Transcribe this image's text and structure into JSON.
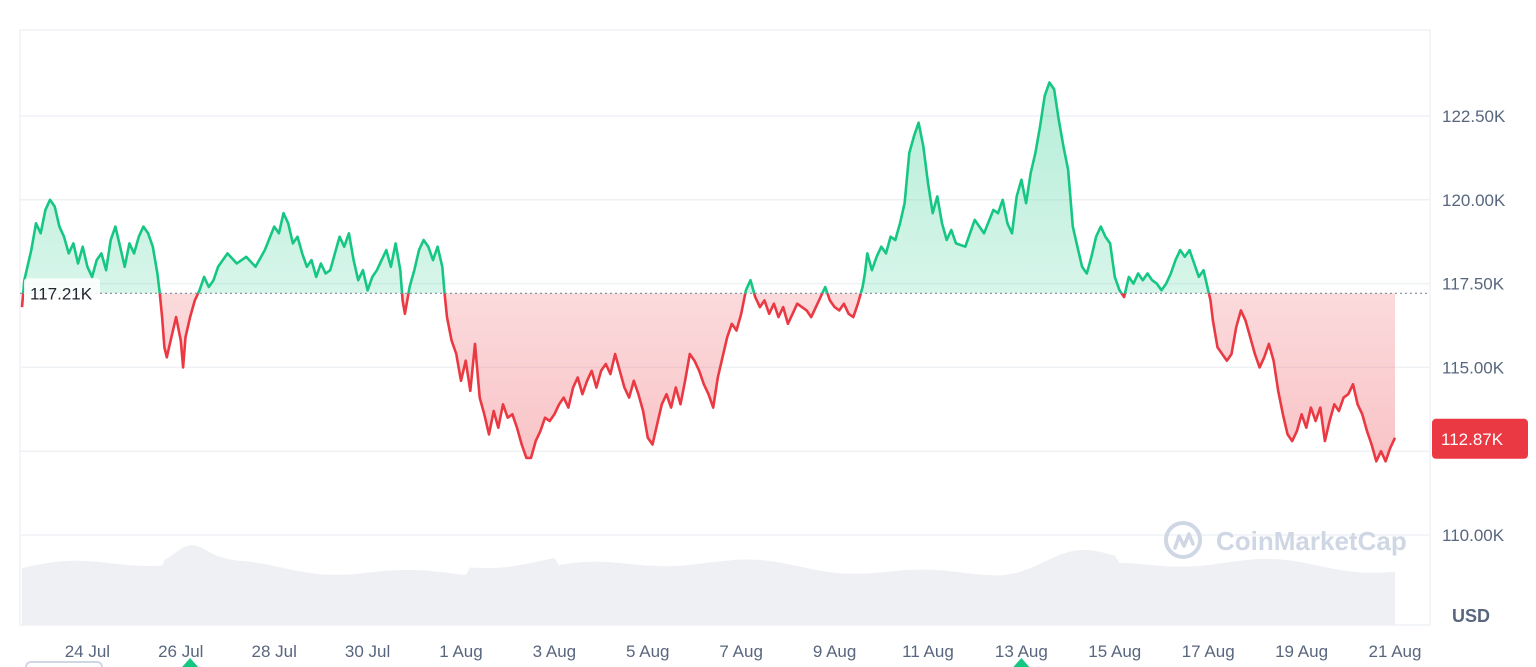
{
  "chart_data": {
    "type": "area",
    "currency_label": "USD",
    "watermark": "CoinMarketCap",
    "ylim": [
      108000,
      124300
    ],
    "y_ticks": [
      {
        "value": 110000,
        "label": "110.00K"
      },
      {
        "value": 115000,
        "label": "115.00K"
      },
      {
        "value": 117500,
        "label": "117.50K"
      },
      {
        "value": 120000,
        "label": "120.00K"
      },
      {
        "value": 122500,
        "label": "122.50K"
      }
    ],
    "x_ticks": [
      {
        "t": 1.4,
        "label": "24 Jul"
      },
      {
        "t": 3.4,
        "label": "26 Jul"
      },
      {
        "t": 5.4,
        "label": "28 Jul"
      },
      {
        "t": 7.4,
        "label": "30 Jul"
      },
      {
        "t": 9.4,
        "label": "1 Aug"
      },
      {
        "t": 11.4,
        "label": "3 Aug"
      },
      {
        "t": 13.4,
        "label": "5 Aug"
      },
      {
        "t": 15.4,
        "label": "7 Aug"
      },
      {
        "t": 17.4,
        "label": "9 Aug"
      },
      {
        "t": 19.4,
        "label": "11 Aug"
      },
      {
        "t": 21.4,
        "label": "13 Aug"
      },
      {
        "t": 23.4,
        "label": "15 Aug"
      },
      {
        "t": 25.4,
        "label": "17 Aug"
      },
      {
        "t": 27.4,
        "label": "19 Aug"
      },
      {
        "t": 29.4,
        "label": "21 Aug"
      }
    ],
    "reference_price": {
      "value": 117210,
      "label": "117.21K"
    },
    "current_price": {
      "value": 112870,
      "label": "112.87K"
    },
    "colors": {
      "up": "#16c784",
      "down": "#ea3943",
      "grid": "#eff2f5",
      "volume": "#eef0f3"
    },
    "series": [
      {
        "values": [
          [
            0.0,
            116800
          ],
          [
            0.05,
            117600
          ],
          [
            0.2,
            118500
          ],
          [
            0.3,
            119300
          ],
          [
            0.4,
            119000
          ],
          [
            0.5,
            119700
          ],
          [
            0.6,
            120000
          ],
          [
            0.7,
            119800
          ],
          [
            0.8,
            119200
          ],
          [
            0.9,
            118900
          ],
          [
            1.0,
            118400
          ],
          [
            1.1,
            118700
          ],
          [
            1.2,
            118100
          ],
          [
            1.3,
            118600
          ],
          [
            1.4,
            118000
          ],
          [
            1.5,
            117700
          ],
          [
            1.6,
            118200
          ],
          [
            1.7,
            118400
          ],
          [
            1.8,
            117900
          ],
          [
            1.9,
            118800
          ],
          [
            2.0,
            119200
          ],
          [
            2.1,
            118600
          ],
          [
            2.2,
            118000
          ],
          [
            2.3,
            118700
          ],
          [
            2.4,
            118400
          ],
          [
            2.5,
            118900
          ],
          [
            2.6,
            119200
          ],
          [
            2.7,
            119000
          ],
          [
            2.8,
            118600
          ],
          [
            2.9,
            117800
          ],
          [
            2.95,
            117200
          ],
          [
            3.0,
            116500
          ],
          [
            3.05,
            115600
          ],
          [
            3.1,
            115300
          ],
          [
            3.2,
            115900
          ],
          [
            3.3,
            116500
          ],
          [
            3.4,
            115800
          ],
          [
            3.45,
            115000
          ],
          [
            3.5,
            115900
          ],
          [
            3.6,
            116500
          ],
          [
            3.7,
            117000
          ],
          [
            3.8,
            117300
          ],
          [
            3.9,
            117700
          ],
          [
            4.0,
            117400
          ],
          [
            4.1,
            117600
          ],
          [
            4.2,
            118000
          ],
          [
            4.4,
            118400
          ],
          [
            4.6,
            118100
          ],
          [
            4.8,
            118300
          ],
          [
            5.0,
            118000
          ],
          [
            5.2,
            118500
          ],
          [
            5.4,
            119200
          ],
          [
            5.5,
            119000
          ],
          [
            5.6,
            119600
          ],
          [
            5.7,
            119300
          ],
          [
            5.8,
            118700
          ],
          [
            5.9,
            118900
          ],
          [
            6.0,
            118400
          ],
          [
            6.1,
            118000
          ],
          [
            6.2,
            118200
          ],
          [
            6.3,
            117700
          ],
          [
            6.4,
            118100
          ],
          [
            6.5,
            117800
          ],
          [
            6.6,
            117900
          ],
          [
            6.7,
            118400
          ],
          [
            6.8,
            118900
          ],
          [
            6.9,
            118600
          ],
          [
            7.0,
            119000
          ],
          [
            7.1,
            118200
          ],
          [
            7.2,
            117600
          ],
          [
            7.3,
            117900
          ],
          [
            7.4,
            117300
          ],
          [
            7.5,
            117700
          ],
          [
            7.6,
            117900
          ],
          [
            7.7,
            118200
          ],
          [
            7.8,
            118500
          ],
          [
            7.9,
            118000
          ],
          [
            8.0,
            118700
          ],
          [
            8.1,
            117900
          ],
          [
            8.15,
            117000
          ],
          [
            8.2,
            116600
          ],
          [
            8.3,
            117400
          ],
          [
            8.4,
            117900
          ],
          [
            8.5,
            118500
          ],
          [
            8.6,
            118800
          ],
          [
            8.7,
            118600
          ],
          [
            8.8,
            118200
          ],
          [
            8.9,
            118600
          ],
          [
            9.0,
            118000
          ],
          [
            9.05,
            117200
          ],
          [
            9.1,
            116500
          ],
          [
            9.2,
            115800
          ],
          [
            9.3,
            115400
          ],
          [
            9.35,
            115000
          ],
          [
            9.4,
            114600
          ],
          [
            9.5,
            115200
          ],
          [
            9.6,
            114300
          ],
          [
            9.7,
            115700
          ],
          [
            9.8,
            114100
          ],
          [
            9.9,
            113600
          ],
          [
            10.0,
            113000
          ],
          [
            10.1,
            113700
          ],
          [
            10.2,
            113200
          ],
          [
            10.3,
            113900
          ],
          [
            10.4,
            113500
          ],
          [
            10.5,
            113600
          ],
          [
            10.6,
            113200
          ],
          [
            10.7,
            112700
          ],
          [
            10.8,
            112300
          ],
          [
            10.9,
            112300
          ],
          [
            11.0,
            112800
          ],
          [
            11.1,
            113100
          ],
          [
            11.2,
            113500
          ],
          [
            11.3,
            113400
          ],
          [
            11.4,
            113600
          ],
          [
            11.5,
            113900
          ],
          [
            11.6,
            114100
          ],
          [
            11.7,
            113800
          ],
          [
            11.8,
            114400
          ],
          [
            11.9,
            114700
          ],
          [
            12.0,
            114200
          ],
          [
            12.1,
            114600
          ],
          [
            12.2,
            114900
          ],
          [
            12.3,
            114400
          ],
          [
            12.4,
            114900
          ],
          [
            12.5,
            115100
          ],
          [
            12.6,
            114800
          ],
          [
            12.7,
            115400
          ],
          [
            12.8,
            114900
          ],
          [
            12.9,
            114400
          ],
          [
            13.0,
            114100
          ],
          [
            13.1,
            114600
          ],
          [
            13.2,
            114200
          ],
          [
            13.3,
            113700
          ],
          [
            13.4,
            112900
          ],
          [
            13.5,
            112700
          ],
          [
            13.6,
            113300
          ],
          [
            13.7,
            113900
          ],
          [
            13.8,
            114200
          ],
          [
            13.9,
            113800
          ],
          [
            14.0,
            114400
          ],
          [
            14.1,
            113900
          ],
          [
            14.2,
            114600
          ],
          [
            14.3,
            115400
          ],
          [
            14.4,
            115200
          ],
          [
            14.5,
            114900
          ],
          [
            14.6,
            114500
          ],
          [
            14.7,
            114200
          ],
          [
            14.8,
            113800
          ],
          [
            14.9,
            114700
          ],
          [
            15.0,
            115300
          ],
          [
            15.1,
            115900
          ],
          [
            15.2,
            116300
          ],
          [
            15.3,
            116100
          ],
          [
            15.4,
            116600
          ],
          [
            15.5,
            117300
          ],
          [
            15.6,
            117600
          ],
          [
            15.7,
            117100
          ],
          [
            15.8,
            116800
          ],
          [
            15.9,
            117000
          ],
          [
            16.0,
            116600
          ],
          [
            16.1,
            116900
          ],
          [
            16.2,
            116500
          ],
          [
            16.3,
            116800
          ],
          [
            16.4,
            116300
          ],
          [
            16.5,
            116600
          ],
          [
            16.6,
            116900
          ],
          [
            16.7,
            116800
          ],
          [
            16.8,
            116700
          ],
          [
            16.9,
            116500
          ],
          [
            17.0,
            116800
          ],
          [
            17.1,
            117100
          ],
          [
            17.2,
            117400
          ],
          [
            17.3,
            117000
          ],
          [
            17.4,
            116800
          ],
          [
            17.5,
            116700
          ],
          [
            17.6,
            116900
          ],
          [
            17.7,
            116600
          ],
          [
            17.8,
            116500
          ],
          [
            17.9,
            116900
          ],
          [
            18.0,
            117400
          ],
          [
            18.05,
            117800
          ],
          [
            18.1,
            118400
          ],
          [
            18.2,
            117900
          ],
          [
            18.3,
            118300
          ],
          [
            18.4,
            118600
          ],
          [
            18.5,
            118400
          ],
          [
            18.6,
            118900
          ],
          [
            18.7,
            118800
          ],
          [
            18.8,
            119300
          ],
          [
            18.9,
            119900
          ],
          [
            19.0,
            121400
          ],
          [
            19.1,
            121900
          ],
          [
            19.2,
            122300
          ],
          [
            19.3,
            121600
          ],
          [
            19.4,
            120500
          ],
          [
            19.5,
            119600
          ],
          [
            19.6,
            120100
          ],
          [
            19.7,
            119300
          ],
          [
            19.8,
            118800
          ],
          [
            19.9,
            119100
          ],
          [
            20.0,
            118700
          ],
          [
            20.2,
            118600
          ],
          [
            20.4,
            119400
          ],
          [
            20.6,
            119000
          ],
          [
            20.8,
            119700
          ],
          [
            20.9,
            119600
          ],
          [
            21.0,
            120000
          ],
          [
            21.1,
            119300
          ],
          [
            21.2,
            119000
          ],
          [
            21.3,
            120100
          ],
          [
            21.4,
            120600
          ],
          [
            21.5,
            119900
          ],
          [
            21.6,
            120800
          ],
          [
            21.7,
            121400
          ],
          [
            21.8,
            122200
          ],
          [
            21.9,
            123100
          ],
          [
            22.0,
            123500
          ],
          [
            22.1,
            123300
          ],
          [
            22.2,
            122400
          ],
          [
            22.3,
            121600
          ],
          [
            22.4,
            120900
          ],
          [
            22.5,
            119200
          ],
          [
            22.6,
            118600
          ],
          [
            22.7,
            118000
          ],
          [
            22.8,
            117800
          ],
          [
            22.9,
            118300
          ],
          [
            23.0,
            118900
          ],
          [
            23.1,
            119200
          ],
          [
            23.2,
            118900
          ],
          [
            23.3,
            118700
          ],
          [
            23.4,
            117700
          ],
          [
            23.5,
            117300
          ],
          [
            23.6,
            117100
          ],
          [
            23.7,
            117700
          ],
          [
            23.8,
            117500
          ],
          [
            23.9,
            117800
          ],
          [
            24.0,
            117600
          ],
          [
            24.1,
            117800
          ],
          [
            24.2,
            117600
          ],
          [
            24.3,
            117500
          ],
          [
            24.4,
            117300
          ],
          [
            24.5,
            117500
          ],
          [
            24.6,
            117800
          ],
          [
            24.7,
            118200
          ],
          [
            24.8,
            118500
          ],
          [
            24.9,
            118300
          ],
          [
            25.0,
            118500
          ],
          [
            25.1,
            118100
          ],
          [
            25.2,
            117700
          ],
          [
            25.3,
            117900
          ],
          [
            25.4,
            117300
          ],
          [
            25.45,
            117000
          ],
          [
            25.5,
            116400
          ],
          [
            25.6,
            115600
          ],
          [
            25.7,
            115400
          ],
          [
            25.8,
            115200
          ],
          [
            25.9,
            115400
          ],
          [
            26.0,
            116200
          ],
          [
            26.1,
            116700
          ],
          [
            26.2,
            116400
          ],
          [
            26.3,
            115900
          ],
          [
            26.4,
            115400
          ],
          [
            26.5,
            115000
          ],
          [
            26.6,
            115300
          ],
          [
            26.7,
            115700
          ],
          [
            26.8,
            115200
          ],
          [
            26.9,
            114300
          ],
          [
            27.0,
            113600
          ],
          [
            27.1,
            113000
          ],
          [
            27.2,
            112800
          ],
          [
            27.3,
            113100
          ],
          [
            27.4,
            113600
          ],
          [
            27.5,
            113200
          ],
          [
            27.6,
            113800
          ],
          [
            27.7,
            113400
          ],
          [
            27.8,
            113800
          ],
          [
            27.9,
            112800
          ],
          [
            28.0,
            113400
          ],
          [
            28.1,
            113900
          ],
          [
            28.2,
            113700
          ],
          [
            28.3,
            114100
          ],
          [
            28.4,
            114200
          ],
          [
            28.5,
            114500
          ],
          [
            28.6,
            113900
          ],
          [
            28.7,
            113600
          ],
          [
            28.8,
            113100
          ],
          [
            28.9,
            112700
          ],
          [
            29.0,
            112200
          ],
          [
            29.1,
            112500
          ],
          [
            29.2,
            112200
          ],
          [
            29.3,
            112600
          ],
          [
            29.4,
            112900
          ]
        ]
      }
    ]
  }
}
